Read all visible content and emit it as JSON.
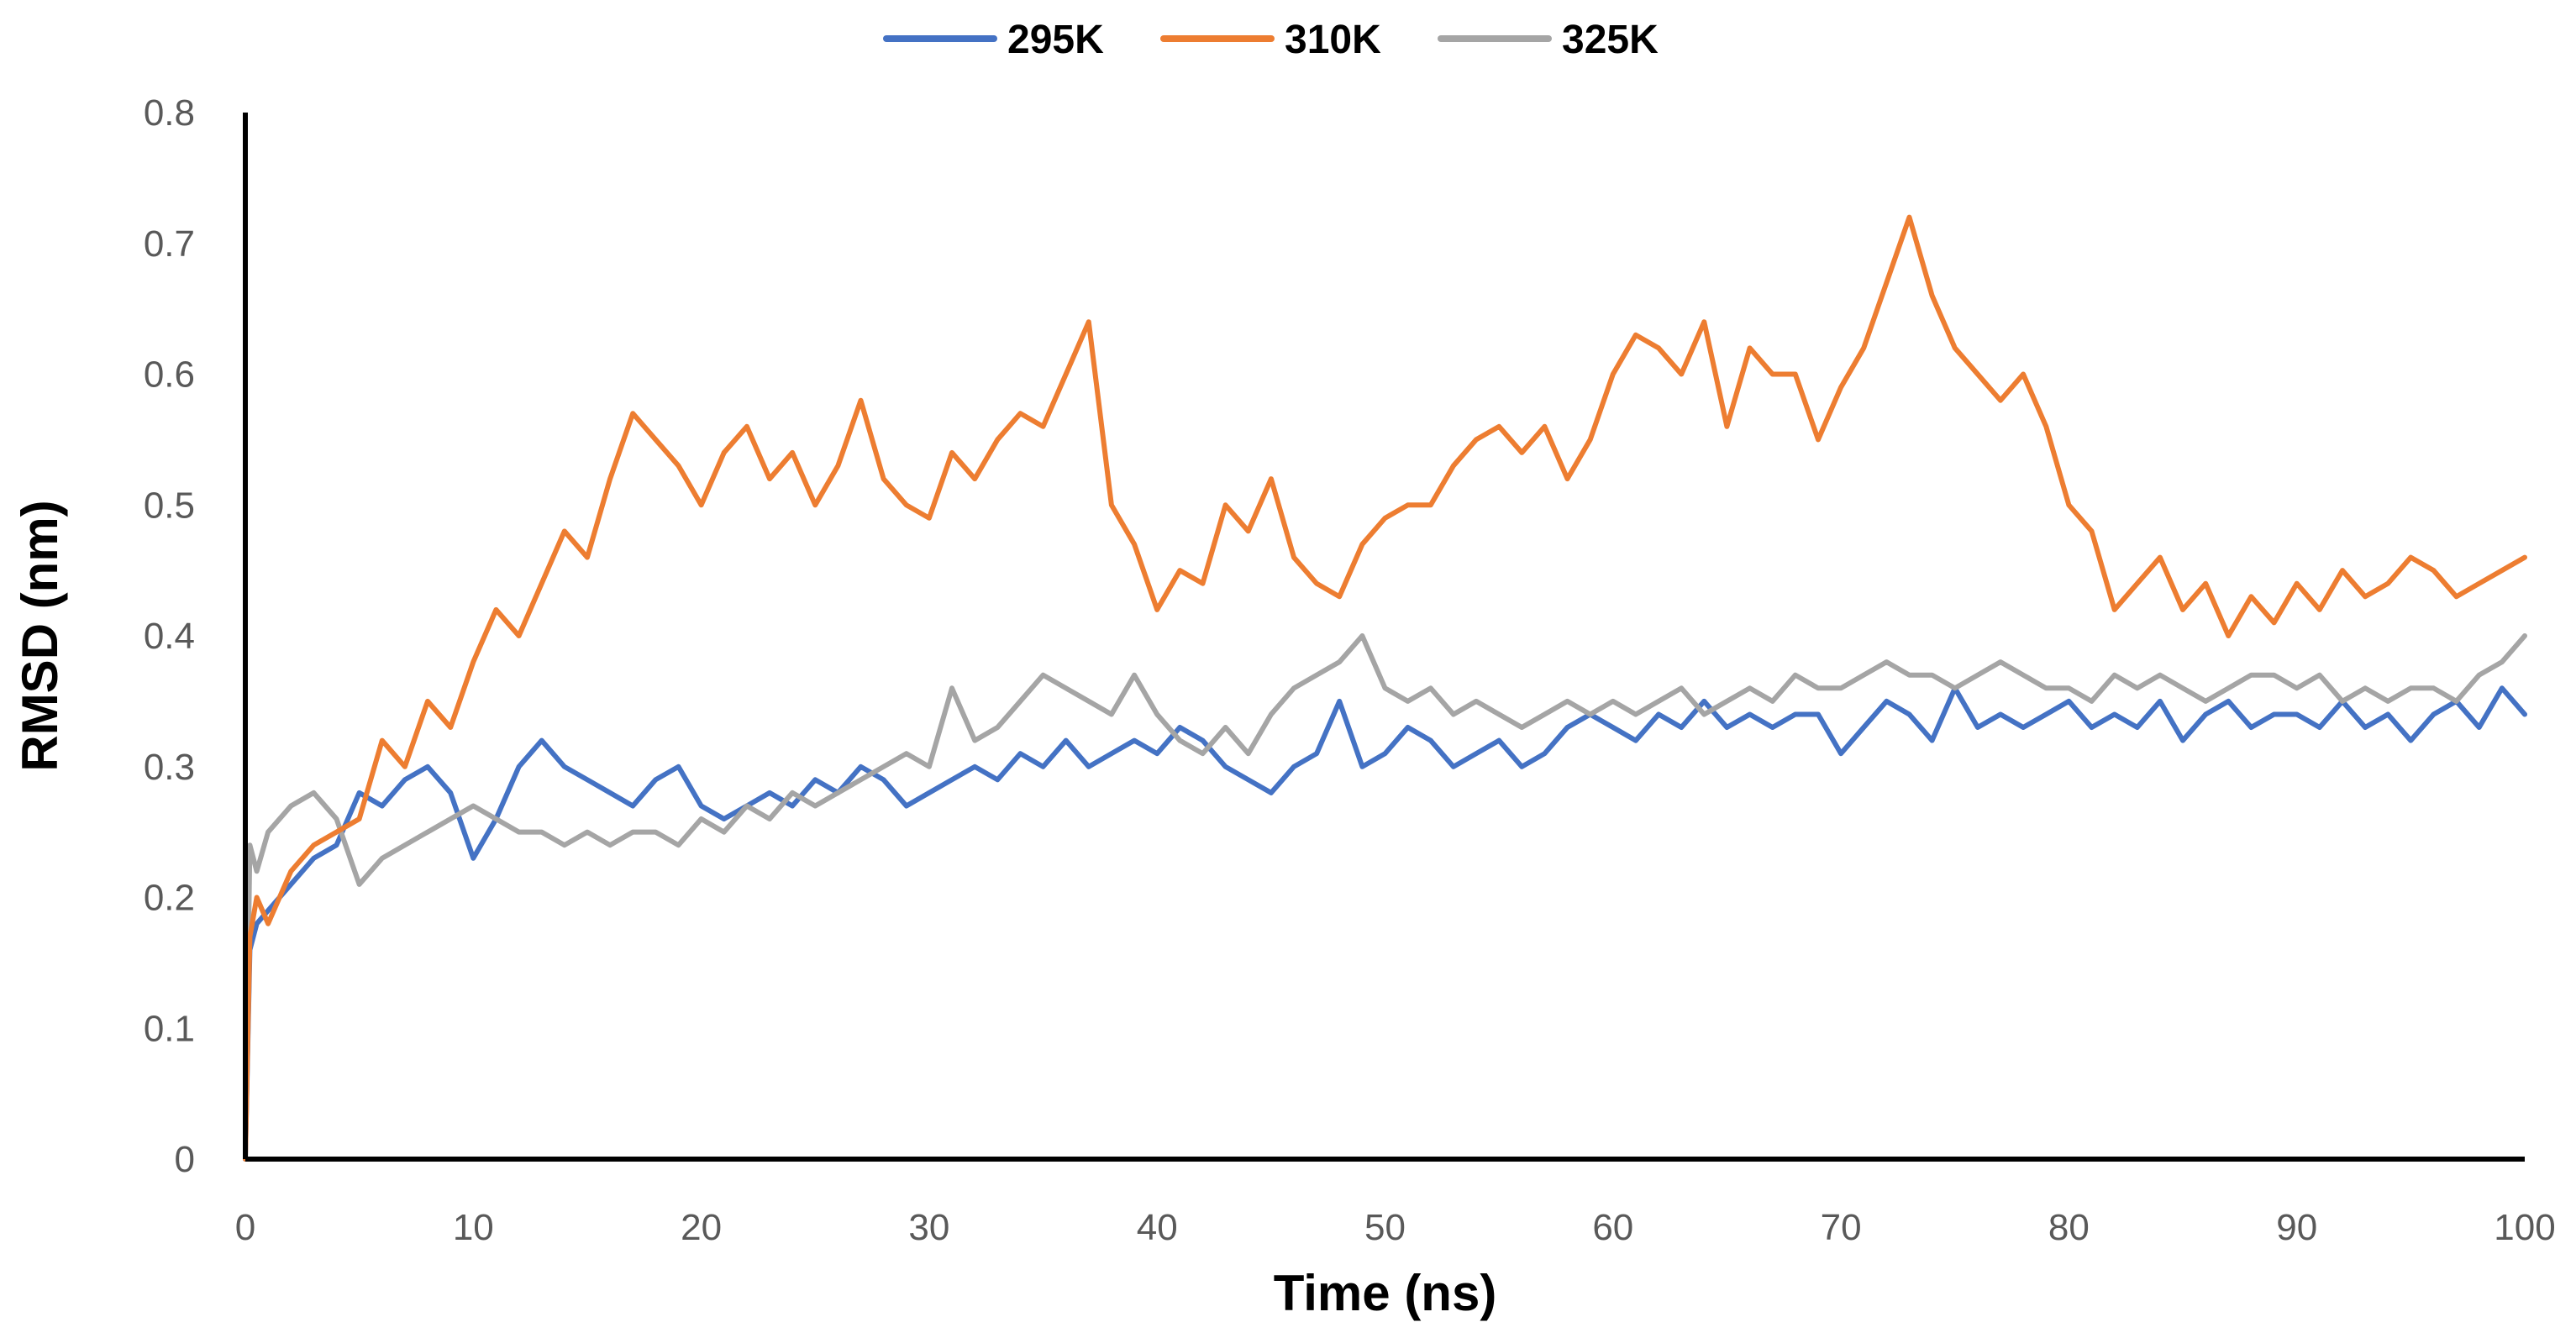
{
  "chart_data": {
    "type": "line",
    "title": "",
    "xlabel": "Time (ns)",
    "ylabel": "RMSD (nm)",
    "xlim": [
      0,
      100
    ],
    "ylim": [
      0,
      0.8
    ],
    "xticks": [
      0,
      10,
      20,
      30,
      40,
      50,
      60,
      70,
      80,
      90,
      100
    ],
    "xtick_labels": [
      "0",
      "10",
      "20",
      "30",
      "40",
      "50",
      "60",
      "70",
      "80",
      "90",
      "100"
    ],
    "yticks": [
      0,
      0.1,
      0.2,
      0.3,
      0.4,
      0.5,
      0.6,
      0.7,
      0.8
    ],
    "ytick_labels": [
      "0",
      "0.1",
      "0.2",
      "0.3",
      "0.4",
      "0.5",
      "0.6",
      "0.7",
      "0.8"
    ],
    "grid": false,
    "legend_position": "top-center",
    "x": [
      0,
      0.2,
      0.5,
      1,
      2,
      3,
      4,
      5,
      6,
      7,
      8,
      9,
      10,
      11,
      12,
      13,
      14,
      15,
      16,
      17,
      18,
      19,
      20,
      21,
      22,
      23,
      24,
      25,
      26,
      27,
      28,
      29,
      30,
      31,
      32,
      33,
      34,
      35,
      36,
      37,
      38,
      39,
      40,
      41,
      42,
      43,
      44,
      45,
      46,
      47,
      48,
      49,
      50,
      51,
      52,
      53,
      54,
      55,
      56,
      57,
      58,
      59,
      60,
      61,
      62,
      63,
      64,
      65,
      66,
      67,
      68,
      69,
      70,
      71,
      72,
      73,
      74,
      75,
      76,
      77,
      78,
      79,
      80,
      81,
      82,
      83,
      84,
      85,
      86,
      87,
      88,
      89,
      90,
      91,
      92,
      93,
      94,
      95,
      96,
      97,
      98,
      99,
      100
    ],
    "series": [
      {
        "name": "295K",
        "color": "#4472C4",
        "values": [
          0,
          0.16,
          0.18,
          0.19,
          0.21,
          0.23,
          0.24,
          0.28,
          0.27,
          0.29,
          0.3,
          0.28,
          0.23,
          0.26,
          0.3,
          0.32,
          0.3,
          0.29,
          0.28,
          0.27,
          0.29,
          0.3,
          0.27,
          0.26,
          0.27,
          0.28,
          0.27,
          0.29,
          0.28,
          0.3,
          0.29,
          0.27,
          0.28,
          0.29,
          0.3,
          0.29,
          0.31,
          0.3,
          0.32,
          0.3,
          0.31,
          0.32,
          0.31,
          0.33,
          0.32,
          0.3,
          0.29,
          0.28,
          0.3,
          0.31,
          0.35,
          0.3,
          0.31,
          0.33,
          0.32,
          0.3,
          0.31,
          0.32,
          0.3,
          0.31,
          0.33,
          0.34,
          0.33,
          0.32,
          0.34,
          0.33,
          0.35,
          0.33,
          0.34,
          0.33,
          0.34,
          0.34,
          0.31,
          0.33,
          0.35,
          0.34,
          0.32,
          0.36,
          0.33,
          0.34,
          0.33,
          0.34,
          0.35,
          0.33,
          0.34,
          0.33,
          0.35,
          0.32,
          0.34,
          0.35,
          0.33,
          0.34,
          0.34,
          0.33,
          0.35,
          0.33,
          0.34,
          0.32,
          0.34,
          0.35,
          0.33,
          0.36,
          0.34
        ]
      },
      {
        "name": "310K",
        "color": "#ED7D31",
        "values": [
          0,
          0.17,
          0.2,
          0.18,
          0.22,
          0.24,
          0.25,
          0.26,
          0.32,
          0.3,
          0.35,
          0.33,
          0.38,
          0.42,
          0.4,
          0.44,
          0.48,
          0.46,
          0.52,
          0.57,
          0.55,
          0.53,
          0.5,
          0.54,
          0.56,
          0.52,
          0.54,
          0.5,
          0.53,
          0.58,
          0.52,
          0.5,
          0.49,
          0.54,
          0.52,
          0.55,
          0.57,
          0.56,
          0.6,
          0.64,
          0.5,
          0.47,
          0.42,
          0.45,
          0.44,
          0.5,
          0.48,
          0.52,
          0.46,
          0.44,
          0.43,
          0.47,
          0.49,
          0.5,
          0.5,
          0.53,
          0.55,
          0.56,
          0.54,
          0.56,
          0.52,
          0.55,
          0.6,
          0.63,
          0.62,
          0.6,
          0.64,
          0.56,
          0.62,
          0.6,
          0.6,
          0.55,
          0.59,
          0.62,
          0.67,
          0.72,
          0.66,
          0.62,
          0.6,
          0.58,
          0.6,
          0.56,
          0.5,
          0.48,
          0.42,
          0.44,
          0.46,
          0.42,
          0.44,
          0.4,
          0.43,
          0.41,
          0.44,
          0.42,
          0.45,
          0.43,
          0.44,
          0.46,
          0.45,
          0.43,
          0.44,
          0.45,
          0.46
        ]
      },
      {
        "name": "325K",
        "color": "#A5A5A5",
        "values": [
          0,
          0.24,
          0.22,
          0.25,
          0.27,
          0.28,
          0.26,
          0.21,
          0.23,
          0.24,
          0.25,
          0.26,
          0.27,
          0.26,
          0.25,
          0.25,
          0.24,
          0.25,
          0.24,
          0.25,
          0.25,
          0.24,
          0.26,
          0.25,
          0.27,
          0.26,
          0.28,
          0.27,
          0.28,
          0.29,
          0.3,
          0.31,
          0.3,
          0.36,
          0.32,
          0.33,
          0.35,
          0.37,
          0.36,
          0.35,
          0.34,
          0.37,
          0.34,
          0.32,
          0.31,
          0.33,
          0.31,
          0.34,
          0.36,
          0.37,
          0.38,
          0.4,
          0.36,
          0.35,
          0.36,
          0.34,
          0.35,
          0.34,
          0.33,
          0.34,
          0.35,
          0.34,
          0.35,
          0.34,
          0.35,
          0.36,
          0.34,
          0.35,
          0.36,
          0.35,
          0.37,
          0.36,
          0.36,
          0.37,
          0.38,
          0.37,
          0.37,
          0.36,
          0.37,
          0.38,
          0.37,
          0.36,
          0.36,
          0.35,
          0.37,
          0.36,
          0.37,
          0.36,
          0.35,
          0.36,
          0.37,
          0.37,
          0.36,
          0.37,
          0.35,
          0.36,
          0.35,
          0.36,
          0.36,
          0.35,
          0.37,
          0.38,
          0.4
        ]
      }
    ]
  }
}
